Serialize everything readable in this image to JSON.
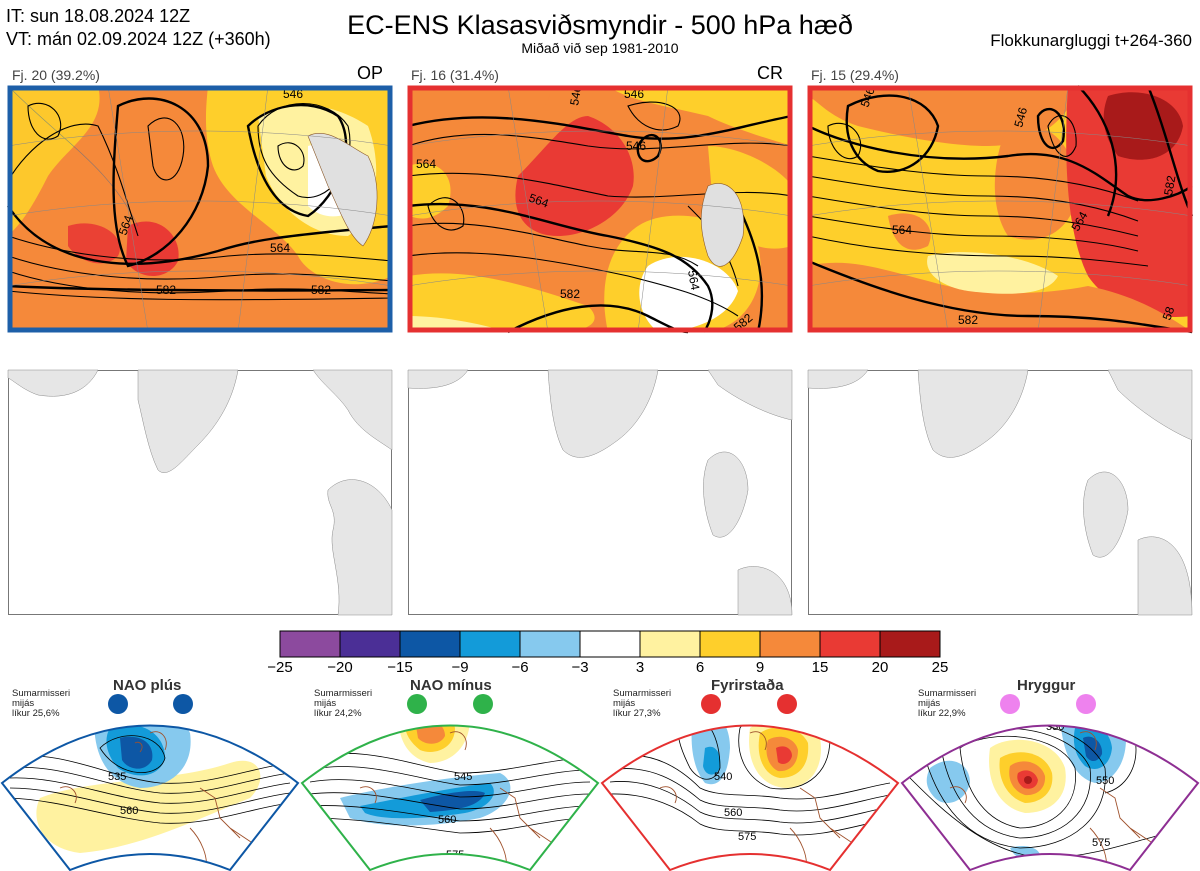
{
  "header": {
    "it_line": "IT: sun 18.08.2024 12Z",
    "vt_line": "VT: mán 02.09.2024 12Z  (+360h)",
    "title": "EC-ENS Klasasviðsmyndir - 500 hPa hæð",
    "subtitle": "Miðað við sep 1981-2010",
    "window": "Flokkunargluggi t+264-360"
  },
  "clusters": [
    {
      "label": "Fj. 20 (39.2%)",
      "tag": "OP",
      "border_color": "#1d5fa8",
      "contours": [
        "564",
        "564",
        "582",
        "582",
        "546"
      ]
    },
    {
      "label": "Fj. 16 (31.4%)",
      "tag": "CR",
      "border_color": "#e53030",
      "contours": [
        "564",
        "546",
        "546",
        "564",
        "582",
        "564",
        "582",
        "546"
      ]
    },
    {
      "label": "Fj. 15 (29.4%)",
      "tag": "",
      "border_color": "#e53030",
      "contours": [
        "546",
        "546",
        "582",
        "564",
        "564",
        "582",
        "58"
      ]
    }
  ],
  "colorbar": {
    "ticks": [
      "−25",
      "−20",
      "−15",
      "−9",
      "−6",
      "−3",
      "3",
      "6",
      "9",
      "15",
      "20",
      "25"
    ],
    "colors": [
      "#8c4a9e",
      "#4b2f96",
      "#0d57a5",
      "#139bd9",
      "#86c9ee",
      "#ffffff",
      "#fff2a0",
      "#fecf2b",
      "#f5893a",
      "#e93a34",
      "#a81a1a"
    ]
  },
  "regimes": [
    {
      "name": "NAO plús",
      "info": [
        "Sumarmisseri",
        "mijás",
        "líkur 25,6%"
      ],
      "dot_color": "#0d57a5",
      "border_color": "#0d57a5",
      "contours": [
        "535",
        "560"
      ]
    },
    {
      "name": "NAO mínus",
      "info": [
        "Sumarmisseri",
        "mijás",
        "líkur 24,2%"
      ],
      "dot_color": "#2fb24a",
      "border_color": "#2fb24a",
      "contours": [
        "545",
        "560",
        "575"
      ]
    },
    {
      "name": "Fyrirstaða",
      "info": [
        "Sumarmisseri",
        "mijás",
        "líkur 27,3%"
      ],
      "dot_color": "#e53030",
      "border_color": "#e53030",
      "contours": [
        "540",
        "560",
        "575"
      ]
    },
    {
      "name": "Hryggur",
      "info": [
        "Sumarmisseri",
        "mijás",
        "líkur 22,9%"
      ],
      "dot_color": "#ee82ee",
      "border_color": "#8e2f93",
      "contours": [
        "530",
        "550",
        "575"
      ]
    }
  ]
}
